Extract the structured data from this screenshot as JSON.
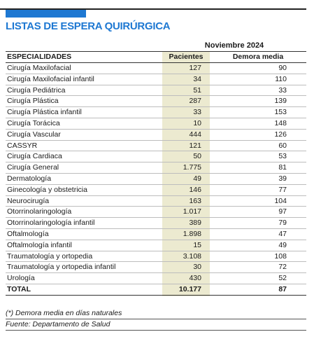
{
  "header": {
    "title": "LISTAS DE ESPERA QUIRÚRGICA",
    "period": "Noviembre 2024"
  },
  "table": {
    "columns": [
      "ESPECIALIDADES",
      "Pacientes",
      "Demora media"
    ],
    "rows": [
      [
        "Cirugía Maxilofacial",
        "127",
        "90"
      ],
      [
        "Cirugía Maxilofacial infantil",
        "34",
        "110"
      ],
      [
        "Cirugía Pediátrica",
        "51",
        "33"
      ],
      [
        "Cirugía Plástica",
        "287",
        "139"
      ],
      [
        "Cirugía Plástica infantil",
        "33",
        "153"
      ],
      [
        "Cirugía Torácica",
        "10",
        "148"
      ],
      [
        "Cirugía Vascular",
        "444",
        "126"
      ],
      [
        "CASSYR",
        "121",
        "60"
      ],
      [
        "Cirugía Cardiaca",
        "50",
        "53"
      ],
      [
        "Cirugía General",
        "1.775",
        "81"
      ],
      [
        "Dermatología",
        "49",
        "39"
      ],
      [
        "Ginecología y obstetricia",
        "146",
        "77"
      ],
      [
        "Neurocirugía",
        "163",
        "104"
      ],
      [
        "Otorrinolaringología",
        "1.017",
        "97"
      ],
      [
        "Otorrinolaringología infantil",
        "389",
        "79"
      ],
      [
        "Oftalmología",
        "1.898",
        "47"
      ],
      [
        "Oftalmología infantil",
        "15",
        "49"
      ],
      [
        "Traumatología y ortopedia",
        "3.108",
        "108"
      ],
      [
        "Traumatología y ortopedia infantil",
        "30",
        "72"
      ],
      [
        "Urología",
        "430",
        "52"
      ]
    ],
    "total": [
      "TOTAL",
      "10.177",
      "87"
    ]
  },
  "footnotes": [
    "(*) Demora media en días naturales",
    "Fuente: Departamento de Salud"
  ]
}
